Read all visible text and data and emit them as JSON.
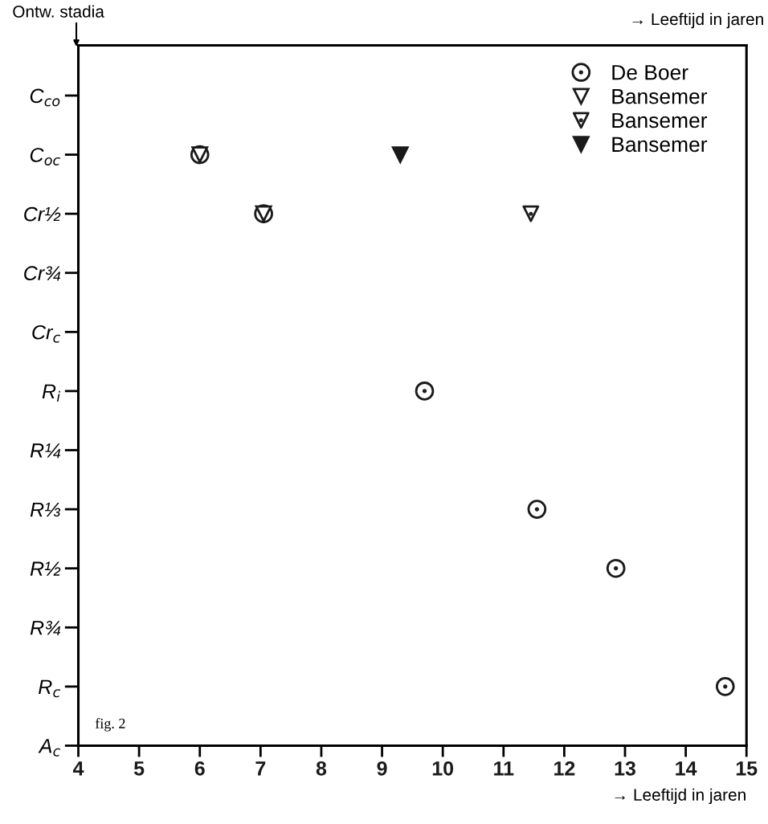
{
  "chart_data": {
    "type": "scatter",
    "orientation": "horizontal",
    "xlabel": "→ Leeftijd in jaren",
    "ylabel": "Ontw. stadia",
    "annotations": [
      "→ Leeftijd in jaren",
      "fig. 2"
    ],
    "xlim": [
      4,
      15
    ],
    "xticks": [
      4,
      5,
      6,
      7,
      8,
      9,
      10,
      11,
      12,
      13,
      14,
      15
    ],
    "categories": [
      "C$_{co}$",
      "C$_{oc}$",
      "Cr½",
      "Cr¾",
      "Cr$_{c}$",
      "R$_{i}$",
      "R¼",
      "R⅓",
      "R½",
      "R¾",
      "R$_{c}$",
      "A$_{c}$"
    ],
    "grid": false,
    "legend": "top right",
    "series": [
      {
        "name": "De Boer",
        "color": "#1a1a1a",
        "marker": "circle",
        "values": [
          null,
          6.0,
          7.05,
          null,
          null,
          9.7,
          null,
          11.55,
          12.85,
          null,
          14.65,
          null
        ]
      },
      {
        "name": "Bansemer",
        "color": "#1a1a1a",
        "marker": "triangle",
        "values": [
          null,
          6.0,
          7.05,
          null,
          null,
          null,
          null,
          null,
          null,
          null,
          null,
          null
        ]
      },
      {
        "name": "Bansemer",
        "color": "#1a1a1a",
        "marker": "triangle",
        "values": [
          null,
          null,
          11.45,
          null,
          null,
          null,
          null,
          null,
          null,
          null,
          null,
          null
        ]
      },
      {
        "name": "Bansemer",
        "color": "#1a1a1a",
        "marker": "triangle",
        "values": [
          null,
          9.3,
          null,
          null,
          null,
          null,
          null,
          null,
          null,
          null,
          null,
          null
        ]
      }
    ]
  }
}
